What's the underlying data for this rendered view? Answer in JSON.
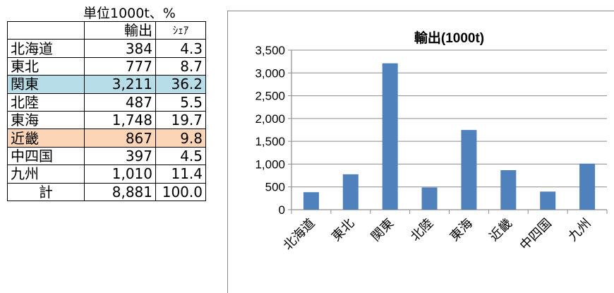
{
  "table": {
    "unit_note": "単位1000t、%",
    "headers": {
      "region": "",
      "export": "輸出",
      "share": "ｼｪｱ"
    },
    "rows": [
      {
        "region": "北海道",
        "export": "384",
        "share": "4.3",
        "highlight": ""
      },
      {
        "region": "東北",
        "export": "777",
        "share": "8.7",
        "highlight": ""
      },
      {
        "region": "関東",
        "export": "3,211",
        "share": "36.2",
        "highlight": "#b7dde8"
      },
      {
        "region": "北陸",
        "export": "487",
        "share": "5.5",
        "highlight": ""
      },
      {
        "region": "東海",
        "export": "1,748",
        "share": "19.7",
        "highlight": ""
      },
      {
        "region": "近畿",
        "export": "867",
        "share": "9.8",
        "highlight": "#fbd5b5"
      },
      {
        "region": "中四国",
        "export": "397",
        "share": "4.5",
        "highlight": ""
      },
      {
        "region": "九州",
        "export": "1,010",
        "share": "11.4",
        "highlight": ""
      }
    ],
    "total": {
      "region": "計",
      "export": "8,881",
      "share": "100.0"
    }
  },
  "chart_data": {
    "type": "bar",
    "title": "輸出(1000t)",
    "categories": [
      "北海道",
      "東北",
      "関東",
      "北陸",
      "東海",
      "近畿",
      "中四国",
      "九州"
    ],
    "values": [
      384,
      777,
      3211,
      487,
      1748,
      867,
      397,
      1010
    ],
    "ylim": [
      0,
      3500
    ],
    "yticks": [
      0,
      500,
      1000,
      1500,
      2000,
      2500,
      3000,
      3500
    ],
    "ytick_labels": [
      "0",
      "500",
      "1,000",
      "1,500",
      "2,000",
      "2,500",
      "3,000",
      "3,500"
    ],
    "grid": true,
    "bar_color": "#4f81bd"
  }
}
